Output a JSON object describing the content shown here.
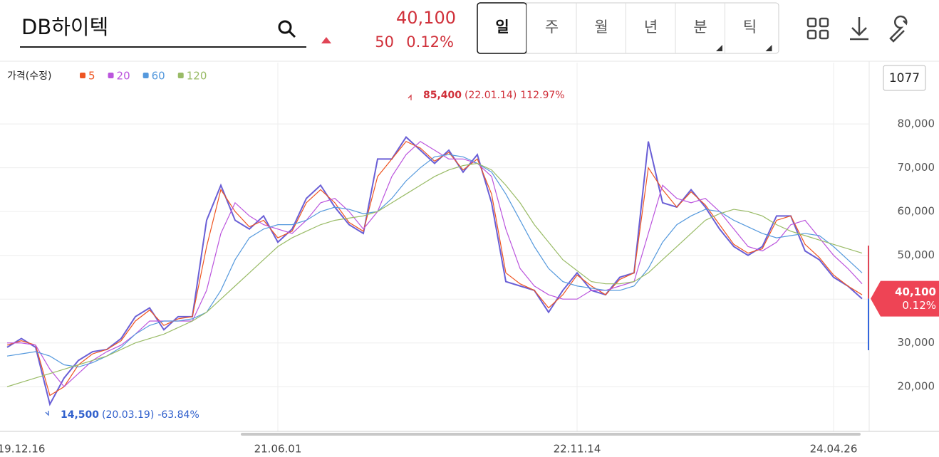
{
  "header": {
    "stock_name": "DB하이텍",
    "price": "40,100",
    "change": "50",
    "change_pct": "0.12%",
    "tabs": [
      "일",
      "주",
      "월",
      "년",
      "분",
      "틱"
    ],
    "count_box": "1077",
    "price_legend": "가격(수정)"
  },
  "chart_data": {
    "type": "line",
    "categories": [
      null,
      "19.12.16",
      null,
      null,
      null,
      null,
      null,
      null,
      null,
      null,
      null,
      null,
      null,
      null,
      null,
      null,
      null,
      null,
      null,
      "21.06.01",
      null,
      null,
      null,
      null,
      null,
      null,
      null,
      null,
      null,
      null,
      null,
      null,
      null,
      null,
      null,
      null,
      null,
      null,
      null,
      null,
      "22.11.14",
      null,
      null,
      null,
      null,
      null,
      null,
      null,
      null,
      null,
      null,
      null,
      null,
      null,
      null,
      null,
      null,
      null,
      "24.04.26",
      null,
      null
    ],
    "series": [
      {
        "name": "가격",
        "color": "#6a5fd6",
        "values": [
          29000,
          31000,
          29000,
          16000,
          22000,
          26000,
          28000,
          28500,
          31000,
          36000,
          38000,
          33000,
          36000,
          36000,
          58000,
          66000,
          58000,
          56000,
          59000,
          53000,
          56000,
          63000,
          66000,
          61000,
          57000,
          55000,
          72000,
          72000,
          77000,
          74000,
          71000,
          74000,
          69000,
          73000,
          62000,
          44000,
          43000,
          42000,
          37000,
          42000,
          46000,
          42000,
          41000,
          45000,
          46000,
          76000,
          62000,
          61000,
          65000,
          61000,
          56000,
          52000,
          50000,
          52000,
          59000,
          59000,
          51000,
          49000,
          45000,
          43000,
          40100
        ]
      },
      {
        "name": "5",
        "color": "#ee5522",
        "values": [
          29500,
          30500,
          29500,
          18000,
          20000,
          25000,
          27500,
          28500,
          30500,
          35000,
          37500,
          34000,
          35500,
          36000,
          52000,
          65000,
          60000,
          56500,
          58000,
          54000,
          55500,
          62000,
          65000,
          62000,
          57500,
          55500,
          68000,
          72000,
          76000,
          74500,
          71500,
          73500,
          69500,
          72000,
          64000,
          46000,
          43500,
          42000,
          38000,
          41000,
          45500,
          43000,
          41000,
          44500,
          46000,
          70000,
          65000,
          61000,
          64500,
          61500,
          57000,
          52500,
          50500,
          51500,
          58000,
          59000,
          52500,
          49500,
          45500,
          43000,
          41000
        ]
      },
      {
        "name": "20",
        "color": "#bb55dd",
        "values": [
          30000,
          30000,
          29500,
          24000,
          20000,
          23000,
          26000,
          28000,
          29500,
          32000,
          35000,
          35000,
          35000,
          35000,
          42000,
          55000,
          62000,
          59000,
          57000,
          56000,
          55000,
          58000,
          62000,
          63000,
          60000,
          56000,
          60000,
          68000,
          73000,
          76000,
          74000,
          72000,
          72000,
          71000,
          68000,
          56000,
          47000,
          43000,
          41000,
          40000,
          40000,
          42000,
          42000,
          43000,
          44000,
          55000,
          66000,
          63000,
          62000,
          63000,
          60000,
          56000,
          52000,
          51000,
          53000,
          57000,
          58000,
          54000,
          50000,
          47000,
          43500
        ]
      },
      {
        "name": "60",
        "color": "#5599dd",
        "values": [
          27000,
          27500,
          28000,
          27000,
          25000,
          24500,
          25500,
          27000,
          29000,
          32000,
          34000,
          35000,
          35000,
          35500,
          37000,
          42000,
          49000,
          54000,
          56000,
          57000,
          57000,
          58000,
          60000,
          61000,
          60500,
          59500,
          60000,
          63000,
          67000,
          70000,
          72500,
          73000,
          72500,
          71000,
          69000,
          64000,
          58000,
          52000,
          47000,
          44000,
          43000,
          42500,
          42000,
          42000,
          43000,
          47000,
          53000,
          57000,
          59000,
          60500,
          60000,
          58000,
          56500,
          55000,
          54000,
          54500,
          55000,
          54500,
          52000,
          49000,
          46000
        ]
      },
      {
        "name": "120",
        "color": "#99bb66",
        "values": [
          20000,
          21000,
          22000,
          23000,
          24000,
          25000,
          26000,
          27000,
          28500,
          30000,
          31000,
          32000,
          33500,
          35000,
          37000,
          40000,
          43000,
          46000,
          49000,
          52000,
          54000,
          55500,
          57000,
          58000,
          58500,
          59000,
          60000,
          62000,
          64000,
          66000,
          68000,
          69500,
          70500,
          71000,
          69500,
          66000,
          62000,
          57000,
          53000,
          49000,
          46500,
          44000,
          43500,
          43500,
          44000,
          46000,
          49000,
          52000,
          55000,
          58000,
          59500,
          60500,
          60000,
          59000,
          57000,
          55500,
          54500,
          53500,
          52500,
          51500,
          50500
        ]
      }
    ],
    "ylim": [
      9800,
      94000
    ],
    "yticks": [
      {
        "value": 20000,
        "label": "20,000"
      },
      {
        "value": 30000,
        "label": "30,000"
      },
      {
        "value": 40000,
        "label": "40,000"
      },
      {
        "value": 50000,
        "label": "50,000"
      },
      {
        "value": 60000,
        "label": "60,000"
      },
      {
        "value": 70000,
        "label": "70,000"
      },
      {
        "value": 80000,
        "label": "80,000"
      }
    ],
    "grid": true,
    "annotations": [
      {
        "value": 85400,
        "label": "85,400",
        "date": "(22.01.14)",
        "change": "112.97%",
        "color": "#d0303a"
      },
      {
        "value": 14500,
        "label": "14,500",
        "date": "(20.03.19)",
        "change": "-63.84%",
        "color": "#2f5fcc"
      }
    ],
    "last_price": {
      "value": 40100,
      "label": "40,100",
      "change": "0.12%",
      "color": "#ee4455"
    }
  }
}
